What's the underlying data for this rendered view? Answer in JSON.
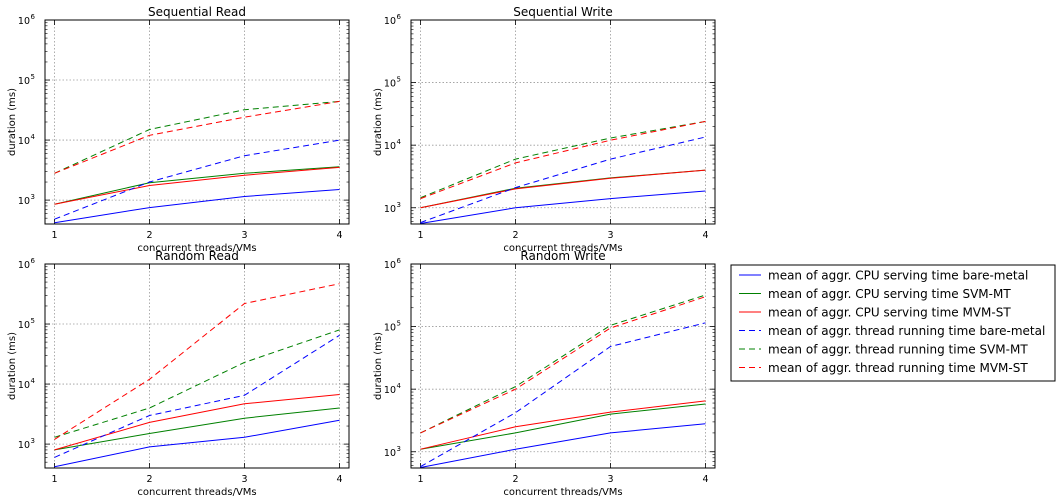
{
  "chart_data": [
    {
      "type": "line",
      "title": "Sequential Read",
      "xlabel": "concurrent threads/VMs",
      "ylabel": "duration (ms)",
      "yscale": "log",
      "ylim": [
        400,
        1000000
      ],
      "xlim": [
        0.9,
        4.1
      ],
      "grid": true,
      "x": [
        1,
        2,
        3,
        4
      ],
      "series": [
        {
          "name": "mean of aggr. CPU serving time bare-metal",
          "color": "#0000ff",
          "dash": "solid",
          "values": [
            420,
            750,
            1150,
            1500
          ]
        },
        {
          "name": "mean of aggr. CPU serving time SVM-MT",
          "color": "#008000",
          "dash": "solid",
          "values": [
            850,
            1950,
            2800,
            3600
          ]
        },
        {
          "name": "mean of aggr. CPU serving time MVM-ST",
          "color": "#ff0000",
          "dash": "solid",
          "values": [
            850,
            1750,
            2600,
            3500
          ]
        },
        {
          "name": "mean of aggr. thread running time bare-metal",
          "color": "#0000ff",
          "dash": "dashed",
          "values": [
            480,
            2000,
            5500,
            10000
          ]
        },
        {
          "name": "mean of aggr. thread running time SVM-MT",
          "color": "#008000",
          "dash": "dashed",
          "values": [
            2800,
            15000,
            32000,
            44000
          ]
        },
        {
          "name": "mean of aggr. thread running time MVM-ST",
          "color": "#ff0000",
          "dash": "dashed",
          "values": [
            2800,
            12000,
            24000,
            44000
          ]
        }
      ]
    },
    {
      "type": "line",
      "title": "Sequential Write",
      "xlabel": "concurrent threads/VMs",
      "ylabel": "duration (ms)",
      "yscale": "log",
      "ylim": [
        550,
        1000000
      ],
      "xlim": [
        0.9,
        4.1
      ],
      "grid": true,
      "x": [
        1,
        2,
        3,
        4
      ],
      "series": [
        {
          "name": "mean of aggr. CPU serving time bare-metal",
          "color": "#0000ff",
          "dash": "solid",
          "values": [
            560,
            1000,
            1400,
            1850
          ]
        },
        {
          "name": "mean of aggr. CPU serving time SVM-MT",
          "color": "#008000",
          "dash": "solid",
          "values": [
            1000,
            2050,
            3000,
            4000
          ]
        },
        {
          "name": "mean of aggr. CPU serving time MVM-ST",
          "color": "#ff0000",
          "dash": "solid",
          "values": [
            1000,
            2000,
            2950,
            4000
          ]
        },
        {
          "name": "mean of aggr. thread running time bare-metal",
          "color": "#0000ff",
          "dash": "dashed",
          "values": [
            580,
            2100,
            6000,
            13500
          ]
        },
        {
          "name": "mean of aggr. thread running time SVM-MT",
          "color": "#008000",
          "dash": "dashed",
          "values": [
            1450,
            6000,
            13000,
            24000
          ]
        },
        {
          "name": "mean of aggr. thread running time MVM-ST",
          "color": "#ff0000",
          "dash": "dashed",
          "values": [
            1400,
            5200,
            12000,
            24000
          ]
        }
      ]
    },
    {
      "type": "line",
      "title": "Random Read",
      "xlabel": "concurrent threads/VMs",
      "ylabel": "duration (ms)",
      "yscale": "log",
      "ylim": [
        400,
        1000000
      ],
      "xlim": [
        0.9,
        4.1
      ],
      "grid": true,
      "x": [
        1,
        2,
        3,
        4
      ],
      "series": [
        {
          "name": "mean of aggr. CPU serving time bare-metal",
          "color": "#0000ff",
          "dash": "solid",
          "values": [
            420,
            900,
            1300,
            2500
          ]
        },
        {
          "name": "mean of aggr. CPU serving time SVM-MT",
          "color": "#008000",
          "dash": "solid",
          "values": [
            800,
            1500,
            2700,
            4000
          ]
        },
        {
          "name": "mean of aggr. CPU serving time MVM-ST",
          "color": "#ff0000",
          "dash": "solid",
          "values": [
            800,
            2300,
            4700,
            6700
          ]
        },
        {
          "name": "mean of aggr. thread running time bare-metal",
          "color": "#0000ff",
          "dash": "dashed",
          "values": [
            600,
            3000,
            6500,
            65000
          ]
        },
        {
          "name": "mean of aggr. thread running time SVM-MT",
          "color": "#008000",
          "dash": "dashed",
          "values": [
            1300,
            4000,
            23000,
            80000
          ]
        },
        {
          "name": "mean of aggr. thread running time MVM-ST",
          "color": "#ff0000",
          "dash": "dashed",
          "values": [
            1200,
            12000,
            220000,
            470000
          ]
        }
      ]
    },
    {
      "type": "line",
      "title": "Random Write",
      "xlabel": "concurrent threads/VMs",
      "ylabel": "duration (ms)",
      "yscale": "log",
      "ylim": [
        550,
        1000000
      ],
      "xlim": [
        0.9,
        4.1
      ],
      "grid": true,
      "x": [
        1,
        2,
        3,
        4
      ],
      "series": [
        {
          "name": "mean of aggr. CPU serving time bare-metal",
          "color": "#0000ff",
          "dash": "solid",
          "values": [
            560,
            1100,
            2000,
            2800
          ]
        },
        {
          "name": "mean of aggr. CPU serving time SVM-MT",
          "color": "#008000",
          "dash": "solid",
          "values": [
            1100,
            2000,
            4000,
            5800
          ]
        },
        {
          "name": "mean of aggr. CPU serving time MVM-ST",
          "color": "#ff0000",
          "dash": "solid",
          "values": [
            1100,
            2500,
            4300,
            6500
          ]
        },
        {
          "name": "mean of aggr. thread running time bare-metal",
          "color": "#0000ff",
          "dash": "dashed",
          "values": [
            580,
            4200,
            48000,
            115000
          ]
        },
        {
          "name": "mean of aggr. thread running time SVM-MT",
          "color": "#008000",
          "dash": "dashed",
          "values": [
            2000,
            11000,
            105000,
            320000
          ]
        },
        {
          "name": "mean of aggr. thread running time MVM-ST",
          "color": "#ff0000",
          "dash": "dashed",
          "values": [
            2000,
            10000,
            95000,
            300000
          ]
        }
      ]
    }
  ],
  "legend": {
    "placement": "right",
    "entries": [
      {
        "label": "mean of aggr. CPU serving time bare-metal",
        "color": "#0000ff",
        "dash": "solid"
      },
      {
        "label": "mean of aggr. CPU serving time SVM-MT",
        "color": "#008000",
        "dash": "solid"
      },
      {
        "label": "mean of aggr. CPU serving time MVM-ST",
        "color": "#ff0000",
        "dash": "solid"
      },
      {
        "label": "mean of aggr. thread running time bare-metal",
        "color": "#0000ff",
        "dash": "dashed"
      },
      {
        "label": "mean of aggr. thread running time SVM-MT",
        "color": "#008000",
        "dash": "dashed"
      },
      {
        "label": "mean of aggr. thread running time MVM-ST",
        "color": "#ff0000",
        "dash": "dashed"
      }
    ]
  }
}
